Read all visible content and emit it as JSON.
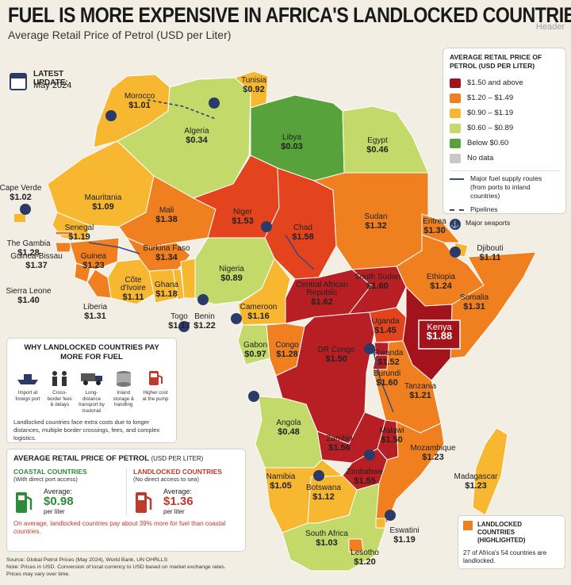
{
  "title": "FUEL IS MORE EXPENSIVE IN AFRICA'S LANDLOCKED COUNTRIES",
  "subtitle": "Average Retail Price of Petrol (USD per Liter)",
  "watermark": "Header",
  "update": {
    "label": "LATEST UPDATE:",
    "value": "May 2024"
  },
  "legend": {
    "title": "AVERAGE RETAIL PRICE OF PETROL (USD PER LITER)",
    "bins": [
      {
        "label": "$1.50 and above",
        "color": "#a3131b"
      },
      {
        "label": "$1.20 – $1.49",
        "color": "#f07f1f"
      },
      {
        "label": "$0.90 – $1.19",
        "color": "#f7b731"
      },
      {
        "label": "$0.60 – $0.89",
        "color": "#c3d96a"
      },
      {
        "label": "Below $0.60",
        "color": "#57a23a"
      },
      {
        "label": "No data",
        "color": "#c8c8c8"
      }
    ],
    "routes": "Major fuel supply routes (from ports to inland countries)",
    "pipelines": "Pipelines",
    "seaports": "Major seaports"
  },
  "countries": [
    {
      "name": "Tunisia",
      "price": "$0.92"
    },
    {
      "name": "Morocco",
      "price": "$1.01"
    },
    {
      "name": "Algeria",
      "price": "$0.34"
    },
    {
      "name": "Libya",
      "price": "$0.03"
    },
    {
      "name": "Egypt",
      "price": "$0.46"
    },
    {
      "name": "Cape Verde",
      "price": "$1.02"
    },
    {
      "name": "Mauritania",
      "price": "$1.09"
    },
    {
      "name": "Mali",
      "price": "$1.38"
    },
    {
      "name": "Niger",
      "price": "$1.53"
    },
    {
      "name": "Chad",
      "price": "$1.58"
    },
    {
      "name": "Sudan",
      "price": "$1.32"
    },
    {
      "name": "Eritrea",
      "price": "$1.30"
    },
    {
      "name": "Djibouti",
      "price": "$1.11"
    },
    {
      "name": "Senegal",
      "price": "$1.19"
    },
    {
      "name": "The Gambia",
      "price": "$1.28"
    },
    {
      "name": "Guinea-Bissau",
      "price": "$1.37"
    },
    {
      "name": "Guinea",
      "price": "$1.23"
    },
    {
      "name": "Sierra Leone",
      "price": "$1.40"
    },
    {
      "name": "Liberia",
      "price": "$1.31"
    },
    {
      "name": "Burkina Faso",
      "price": "$1.34"
    },
    {
      "name": "Côte d'Ivoire",
      "price": "$1.11"
    },
    {
      "name": "Ghana",
      "price": "$1.18"
    },
    {
      "name": "Togo",
      "price": "$1.17"
    },
    {
      "name": "Benin",
      "price": "$1.22"
    },
    {
      "name": "Nigeria",
      "price": "$0.89"
    },
    {
      "name": "Central African Republic",
      "price": "$1.62"
    },
    {
      "name": "South Sudan",
      "price": "$1.60"
    },
    {
      "name": "Ethiopia",
      "price": "$1.24"
    },
    {
      "name": "Somalia",
      "price": "$1.31"
    },
    {
      "name": "Cameroon",
      "price": "$1.16"
    },
    {
      "name": "Uganda",
      "price": "$1.45"
    },
    {
      "name": "Kenya",
      "price": "$1.88"
    },
    {
      "name": "Gabon",
      "price": "$0.97"
    },
    {
      "name": "Congo",
      "price": "$1.28"
    },
    {
      "name": "DR Congo",
      "price": "$1.50"
    },
    {
      "name": "Rwanda",
      "price": "$1.52"
    },
    {
      "name": "Burundi",
      "price": "$1.60"
    },
    {
      "name": "Tanzania",
      "price": "$1.21"
    },
    {
      "name": "Angola",
      "price": "$0.48"
    },
    {
      "name": "Malawi",
      "price": "$1.50"
    },
    {
      "name": "Zambia",
      "price": "$1.56"
    },
    {
      "name": "Mozambique",
      "price": "$1.23"
    },
    {
      "name": "Zimbabwe",
      "price": "$1.55"
    },
    {
      "name": "Namibia",
      "price": "$1.05"
    },
    {
      "name": "Botswana",
      "price": "$1.12"
    },
    {
      "name": "Madagascar",
      "price": "$1.23"
    },
    {
      "name": "South Africa",
      "price": "$1.03"
    },
    {
      "name": "Eswatini",
      "price": "$1.19"
    },
    {
      "name": "Lesotho",
      "price": "$1.20"
    }
  ],
  "why": {
    "title": "WHY LANDLOCKED COUNTRIES PAY MORE FOR FUEL",
    "steps": [
      {
        "label": "Import at foreign port",
        "icon": "ship-icon"
      },
      {
        "label": "Cross-border fees & delays",
        "icon": "people-icon"
      },
      {
        "label": "Long-distance transport by truck/rail",
        "icon": "truck-icon"
      },
      {
        "label": "Inland storage & handling",
        "icon": "storage-tank-icon"
      },
      {
        "label": "Higher cost at the pump",
        "icon": "fuel-pump-icon"
      }
    ],
    "note": "Landlocked countries face extra costs due to longer distances, multiple border crossings, fees, and complex logistics."
  },
  "average": {
    "title": "AVERAGE RETAIL PRICE OF PETROL",
    "unit": "(USD PER LITER)",
    "coastal": {
      "head": "COASTAL COUNTRIES",
      "sub": "(With direct port access)",
      "label": "Average:",
      "value": "$0.98",
      "unit": "per liter",
      "color": "#2e8b3a"
    },
    "landlocked": {
      "head": "LANDLOCKED COUNTRIES",
      "sub": "(No direct access to sea)",
      "label": "Average:",
      "value": "$1.36",
      "unit": "per liter",
      "color": "#c0392b"
    },
    "footnote": "On average, landlocked countries pay about 39% more for fuel than coastal countries."
  },
  "landlocked_box": {
    "title": "LANDLOCKED COUNTRIES (HIGHLIGHTED)",
    "note": "27 of Africa's 54 countries are landlocked."
  },
  "source": {
    "line1": "Source: Global Petrol Prices (May 2024), World Bank, UN OHRLLS",
    "line2": "Note: Prices in USD. Conversion of local currency to USD based on market exchange rates.",
    "line3": "Prices may vary over time."
  }
}
